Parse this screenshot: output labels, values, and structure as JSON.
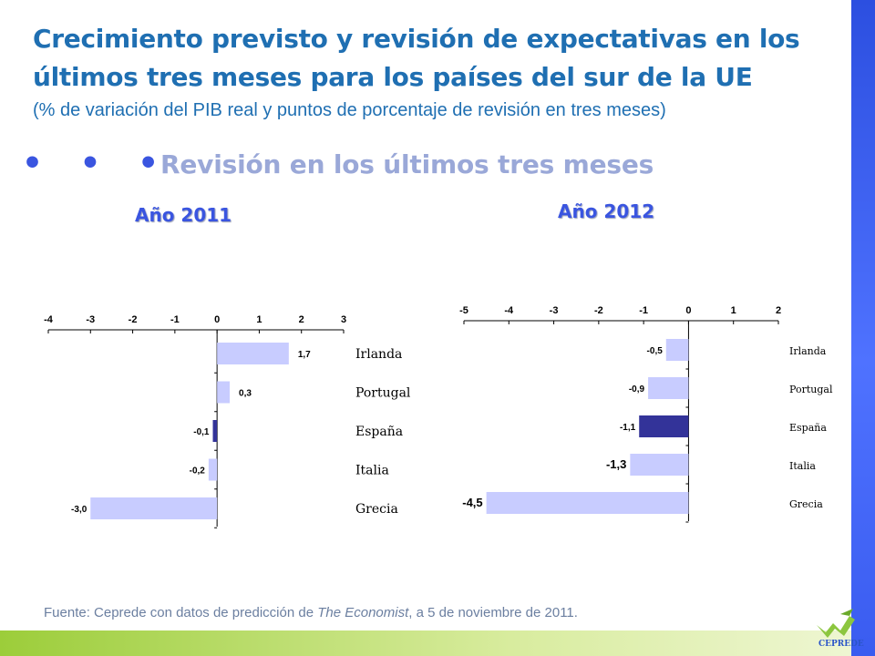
{
  "header": {
    "title": "Crecimiento previsto y revisión de expectativas en los últimos tres meses para los países del sur de la UE",
    "subtitle": "(% de variación del PIB real y puntos de porcentaje de revisión en tres meses)"
  },
  "section": {
    "bullet": "• • •",
    "title": "Revisión en los últimos tres meses"
  },
  "source": {
    "prefix": "Fuente: Ceprede con datos de predicción de ",
    "italic": "The Economist",
    "suffix": ", a 5 de noviembre de 2011."
  },
  "logo": {
    "text": "CEPREDE"
  },
  "colors": {
    "title": "#1f6fb2",
    "bar_default": "#c8ccff",
    "bar_highlight": "#333399",
    "right_bar": "#3a5cf0",
    "bottom_bar": "#9ccd3a"
  },
  "chart_data": [
    {
      "type": "bar",
      "orientation": "horizontal",
      "title": "Año 2011",
      "categories": [
        "Irlanda",
        "Portugal",
        "España",
        "Italia",
        "Grecia"
      ],
      "values": [
        1.7,
        0.3,
        -0.1,
        -0.2,
        -3.0
      ],
      "value_labels": [
        "1,7",
        "0,3",
        "-0,1",
        "-0,2",
        "-3,0"
      ],
      "highlight": "España",
      "xlim": [
        -4,
        3
      ],
      "xticks": [
        "-4",
        "-3",
        "-2",
        "-1",
        "0",
        "1",
        "2",
        "3"
      ],
      "axis_position": "top",
      "legend": "none"
    },
    {
      "type": "bar",
      "orientation": "horizontal",
      "title": "Año 2012",
      "categories": [
        "Irlanda",
        "Portugal",
        "España",
        "Italia",
        "Grecia"
      ],
      "values": [
        -0.5,
        -0.9,
        -1.1,
        -1.3,
        -4.5
      ],
      "value_labels": [
        "-0,5",
        "-0,9",
        "-1,1",
        "-1,3",
        "-4,5"
      ],
      "highlight": "España",
      "xlim": [
        -5,
        2
      ],
      "xticks": [
        "-5",
        "-4",
        "-3",
        "-2",
        "-1",
        "0",
        "1",
        "2"
      ],
      "axis_position": "top",
      "legend": "none"
    }
  ]
}
